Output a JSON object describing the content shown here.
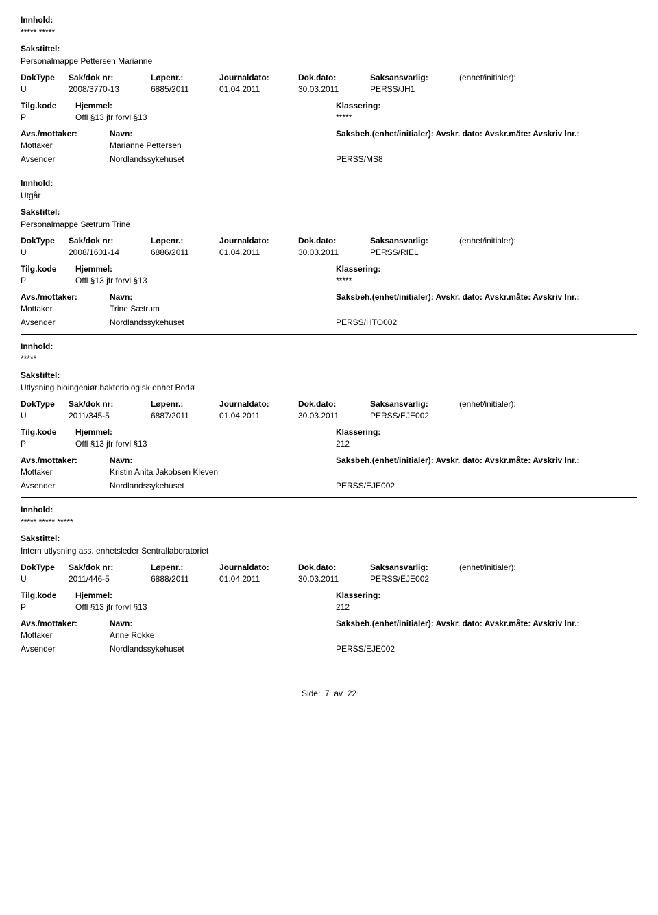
{
  "labels": {
    "innhold": "Innhold:",
    "sakstittel": "Sakstittel:",
    "doktype": "DokType",
    "sakdoknr": "Sak/dok nr:",
    "lopenr": "Løpenr.:",
    "journaldato": "Journaldato:",
    "dokdato": "Dok.dato:",
    "saksansvarlig": "Saksansvarlig:",
    "enhet": "(enhet/initialer):",
    "tilgkode": "Tilg.kode",
    "hjemmel": "Hjemmel:",
    "klassering": "Klassering:",
    "avsmottaker": "Avs./mottaker:",
    "navn": "Navn:",
    "saksbeh": "Saksbeh.(enhet/initialer): Avskr. dato:  Avskr.måte: Avskriv lnr.:",
    "mottaker": "Mottaker",
    "avsender": "Avsender"
  },
  "records": [
    {
      "innhold": "***** *****",
      "sakstittel": "Personalmappe Pettersen Marianne",
      "doktype": "U",
      "sakdok": "2008/3770-13",
      "lopenr": "6885/2011",
      "journaldato": "01.04.2011",
      "dokdato": "30.03.2011",
      "saksansvar": "PERSS/JH1",
      "tilgkode": "P",
      "hjemmel": "Offl §13 jfr forvl §13",
      "klassering": "*****",
      "mottaker_navn": "Marianne Pettersen",
      "avsender_navn": "Nordlandssykehuset",
      "saksbeh_val": "PERSS/MS8"
    },
    {
      "innhold": "Utgår",
      "sakstittel": "Personalmappe Sætrum Trine",
      "doktype": "U",
      "sakdok": "2008/1601-14",
      "lopenr": "6886/2011",
      "journaldato": "01.04.2011",
      "dokdato": "30.03.2011",
      "saksansvar": "PERSS/RIEL",
      "tilgkode": "P",
      "hjemmel": "Offl §13 jfr forvl §13",
      "klassering": "*****",
      "mottaker_navn": "Trine Sætrum",
      "avsender_navn": "Nordlandssykehuset",
      "saksbeh_val": "PERSS/HTO002"
    },
    {
      "innhold": "*****",
      "sakstittel": "Utlysning bioingeniør bakteriologisk enhet Bodø",
      "doktype": "U",
      "sakdok": "2011/345-5",
      "lopenr": "6887/2011",
      "journaldato": "01.04.2011",
      "dokdato": "30.03.2011",
      "saksansvar": "PERSS/EJE002",
      "tilgkode": "P",
      "hjemmel": "Offl §13 jfr forvl §13",
      "klassering": "212",
      "mottaker_navn": "Kristin Anita Jakobsen Kleven",
      "avsender_navn": "Nordlandssykehuset",
      "saksbeh_val": "PERSS/EJE002"
    },
    {
      "innhold": "***** ***** *****",
      "sakstittel": "Intern utlysning ass. enhetsleder Sentrallaboratoriet",
      "doktype": "U",
      "sakdok": "2011/446-5",
      "lopenr": "6888/2011",
      "journaldato": "01.04.2011",
      "dokdato": "30.03.2011",
      "saksansvar": "PERSS/EJE002",
      "tilgkode": "P",
      "hjemmel": "Offl §13 jfr forvl §13",
      "klassering": "212",
      "mottaker_navn": "Anne Rokke",
      "avsender_navn": "Nordlandssykehuset",
      "saksbeh_val": "PERSS/EJE002"
    }
  ],
  "footer": {
    "side_label": "Side:",
    "page": "7",
    "av": "av",
    "total": "22"
  }
}
